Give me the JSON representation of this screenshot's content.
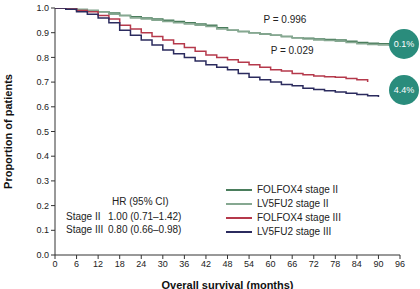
{
  "chart_data": {
    "type": "line",
    "line_style": "step",
    "x_label": "Overall survival (months)",
    "y_label": "Proportion of patients",
    "x": [
      0,
      3,
      6,
      9,
      12,
      15,
      18,
      21,
      24,
      27,
      30,
      33,
      36,
      39,
      42,
      45,
      48,
      51,
      54,
      57,
      60,
      63,
      66,
      69,
      72,
      75,
      78,
      81,
      84,
      87,
      90,
      93,
      95
    ],
    "xlim": [
      0,
      96
    ],
    "xticks": [
      0,
      6,
      12,
      18,
      24,
      30,
      36,
      42,
      48,
      54,
      60,
      66,
      72,
      78,
      84,
      90,
      96
    ],
    "ylim": [
      0,
      1
    ],
    "yticks": [
      {
        "value": 0,
        "label": "0.0"
      },
      0.1,
      0.2,
      0.3,
      0.4,
      0.5,
      0.6,
      0.7,
      0.8,
      0.9,
      {
        "value": 1,
        "label": "1.0"
      }
    ],
    "grid": false,
    "legend": "lower right",
    "series": [
      {
        "name": "FOLFOX4 stage II",
        "color": "#4a7d5c",
        "values": [
          1.0,
          1.0,
          0.99,
          0.99,
          0.985,
          0.98,
          0.97,
          0.965,
          0.96,
          0.955,
          0.95,
          0.945,
          0.94,
          0.935,
          0.93,
          0.92,
          0.91,
          0.905,
          0.9,
          0.895,
          0.89,
          0.885,
          0.88,
          0.878,
          0.875,
          0.872,
          0.87,
          0.865,
          0.86,
          0.857,
          0.855,
          0.85,
          0.83
        ]
      },
      {
        "name": "LV5FU2 stage II",
        "color": "#86a891",
        "values": [
          1.0,
          1.0,
          0.995,
          0.99,
          0.985,
          0.975,
          0.97,
          0.96,
          0.955,
          0.95,
          0.945,
          0.94,
          0.935,
          0.93,
          0.925,
          0.915,
          0.91,
          0.905,
          0.9,
          0.895,
          0.89,
          0.885,
          0.88,
          0.875,
          0.87,
          0.868,
          0.865,
          0.86,
          0.855,
          0.852,
          0.85,
          0.85,
          0.85
        ]
      },
      {
        "name": "FOLFOX4 stage III",
        "color": "#b5394b",
        "values": [
          1.0,
          1.0,
          0.99,
          0.985,
          0.97,
          0.955,
          0.93,
          0.915,
          0.9,
          0.885,
          0.87,
          0.855,
          0.84,
          0.825,
          0.81,
          0.8,
          0.79,
          0.78,
          0.77,
          0.76,
          0.75,
          0.745,
          0.735,
          0.73,
          0.725,
          0.722,
          0.72,
          0.715,
          0.71,
          0.7,
          null,
          null,
          null
        ]
      },
      {
        "name": "LV5FU2 stage III",
        "color": "#2b2b5e",
        "values": [
          1.0,
          0.995,
          0.985,
          0.975,
          0.96,
          0.94,
          0.91,
          0.89,
          0.87,
          0.85,
          0.83,
          0.815,
          0.8,
          0.785,
          0.77,
          0.76,
          0.75,
          0.735,
          0.72,
          0.71,
          0.7,
          0.69,
          0.685,
          0.675,
          0.67,
          0.665,
          0.66,
          0.655,
          0.65,
          0.645,
          0.64,
          null,
          null
        ]
      }
    ],
    "annotations": [
      "P = 0.996",
      "P = 0.029",
      "0.1%",
      "4.4%"
    ],
    "hr_table": {
      "header": "HR (95% CI)",
      "rows": [
        [
          "Stage II",
          "1.00 (0.71–1.42)"
        ],
        [
          "Stage III",
          "0.80 (0.66–0.98)"
        ]
      ]
    }
  }
}
